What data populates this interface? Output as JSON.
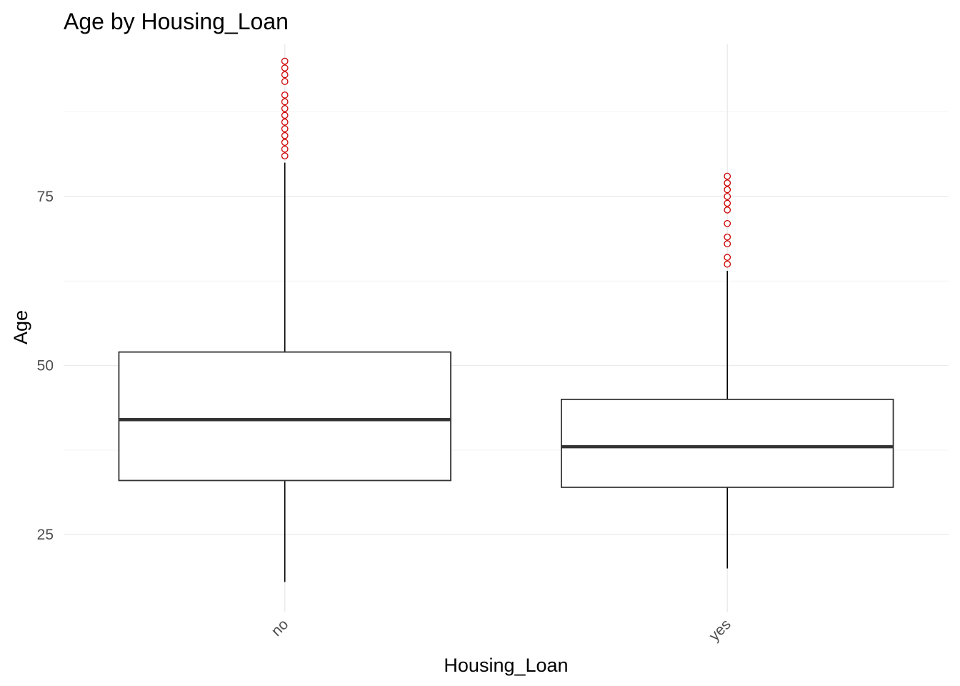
{
  "chart_data": {
    "type": "boxplot",
    "title": "Age by Housing_Loan",
    "xlabel": "Housing_Loan",
    "ylabel": "Age",
    "categories": [
      "no",
      "yes"
    ],
    "ylim": [
      13.5,
      97.5
    ],
    "y_ticks": [
      25,
      50,
      75
    ],
    "y_tick_labels": [
      "25",
      "50",
      "75"
    ],
    "x_tick_rotation": 45,
    "grid": true,
    "legend": "none",
    "box_fill": "#ffffff",
    "box_line_color": "#333333",
    "whisker_color": "#000000",
    "outlier_color": "#cc0000",
    "grid_color": "#ebebeb",
    "series": [
      {
        "category": "no",
        "min": 18,
        "q1": 33,
        "median": 42,
        "q3": 52,
        "max": 80,
        "outliers": [
          81,
          82,
          83,
          84,
          85,
          86,
          87,
          88,
          89,
          90,
          92,
          93,
          94,
          95
        ]
      },
      {
        "category": "yes",
        "min": 20,
        "q1": 32,
        "median": 38,
        "q3": 45,
        "max": 64,
        "outliers": [
          65,
          66,
          68,
          69,
          71,
          73,
          74,
          75,
          76,
          77,
          78
        ]
      }
    ]
  }
}
